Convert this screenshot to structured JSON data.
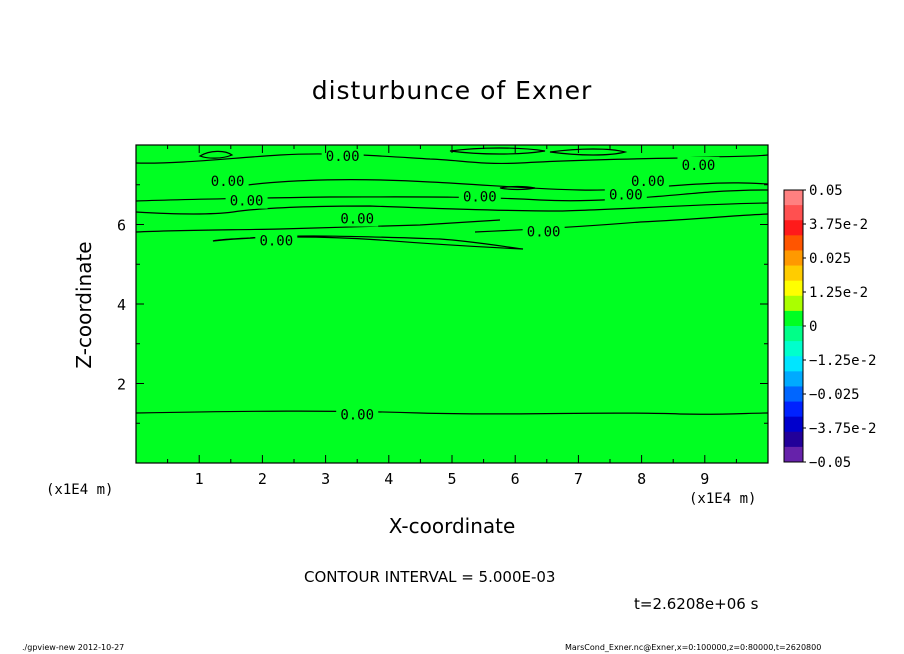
{
  "chart_data": {
    "type": "contour",
    "title": "disturbunce of Exner",
    "xlabel": "X-coordinate",
    "ylabel": "Z-coordinate",
    "x_unit_label": "(x1E4 m)",
    "xlim": [
      0,
      10
    ],
    "ylim": [
      0,
      8
    ],
    "x_ticks": [
      "1",
      "2",
      "3",
      "4",
      "5",
      "6",
      "7",
      "8",
      "9"
    ],
    "y_ticks": [
      "2",
      "4",
      "6"
    ],
    "fill_color": "#00ff22",
    "contour_labels": [
      {
        "x": 3.27,
        "y": 7.72,
        "text": "0.00"
      },
      {
        "x": 8.9,
        "y": 7.5,
        "text": "0.00"
      },
      {
        "x": 1.45,
        "y": 7.1,
        "text": "0.00"
      },
      {
        "x": 8.1,
        "y": 7.1,
        "text": "0.00"
      },
      {
        "x": 1.75,
        "y": 6.6,
        "text": "0.00"
      },
      {
        "x": 5.44,
        "y": 6.7,
        "text": "0.00"
      },
      {
        "x": 7.75,
        "y": 6.75,
        "text": "0.00"
      },
      {
        "x": 3.5,
        "y": 6.15,
        "text": "0.00"
      },
      {
        "x": 6.45,
        "y": 5.82,
        "text": "0.00"
      },
      {
        "x": 2.22,
        "y": 5.6,
        "text": "0.00"
      },
      {
        "x": 3.5,
        "y": 1.22,
        "text": "0.00"
      }
    ],
    "colorbar": {
      "labels": [
        "0.05",
        "3.75e-2",
        "0.025",
        "1.25e-2",
        "0",
        "−1.25e-2",
        "−0.025",
        "−3.75e-2",
        "−0.05"
      ],
      "colors": [
        "#ff8080",
        "#ff5050",
        "#ff1a1a",
        "#ff5500",
        "#ff9900",
        "#ffcc00",
        "#ffff00",
        "#aaff00",
        "#00ff22",
        "#00ff88",
        "#00ffcc",
        "#00e5ff",
        "#00aaff",
        "#0066ff",
        "#0022ff",
        "#0000cc",
        "#220099",
        "#6622aa"
      ]
    }
  },
  "contour_interval": "CONTOUR INTERVAL = 5.000E-03",
  "time_label": "t=2.6208e+06 s",
  "footer_left": "./gpview-new  2012-10-27",
  "footer_right": "MarsCond_Exner.nc@Exner,x=0:100000,z=0:80000,t=2620800"
}
